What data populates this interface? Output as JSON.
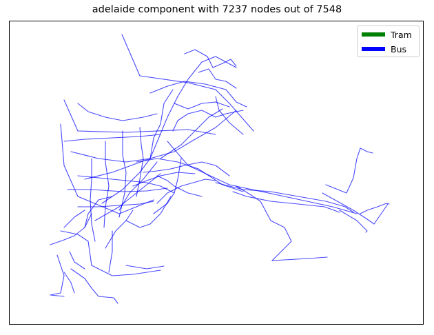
{
  "title": "adelaide component with 7237 nodes out of 7548",
  "legend": {
    "items": [
      {
        "label": "Tram",
        "color": "#008000"
      },
      {
        "label": "Bus",
        "color": "#0000ff"
      }
    ]
  },
  "chart_data": {
    "type": "network",
    "title": "adelaide component with 7237 nodes out of 7548",
    "series": [
      {
        "name": "Tram",
        "color": "#008000"
      },
      {
        "name": "Bus",
        "color": "#0000ff"
      }
    ],
    "legend_position": "top-right",
    "axes_visible": false,
    "grid": false
  }
}
